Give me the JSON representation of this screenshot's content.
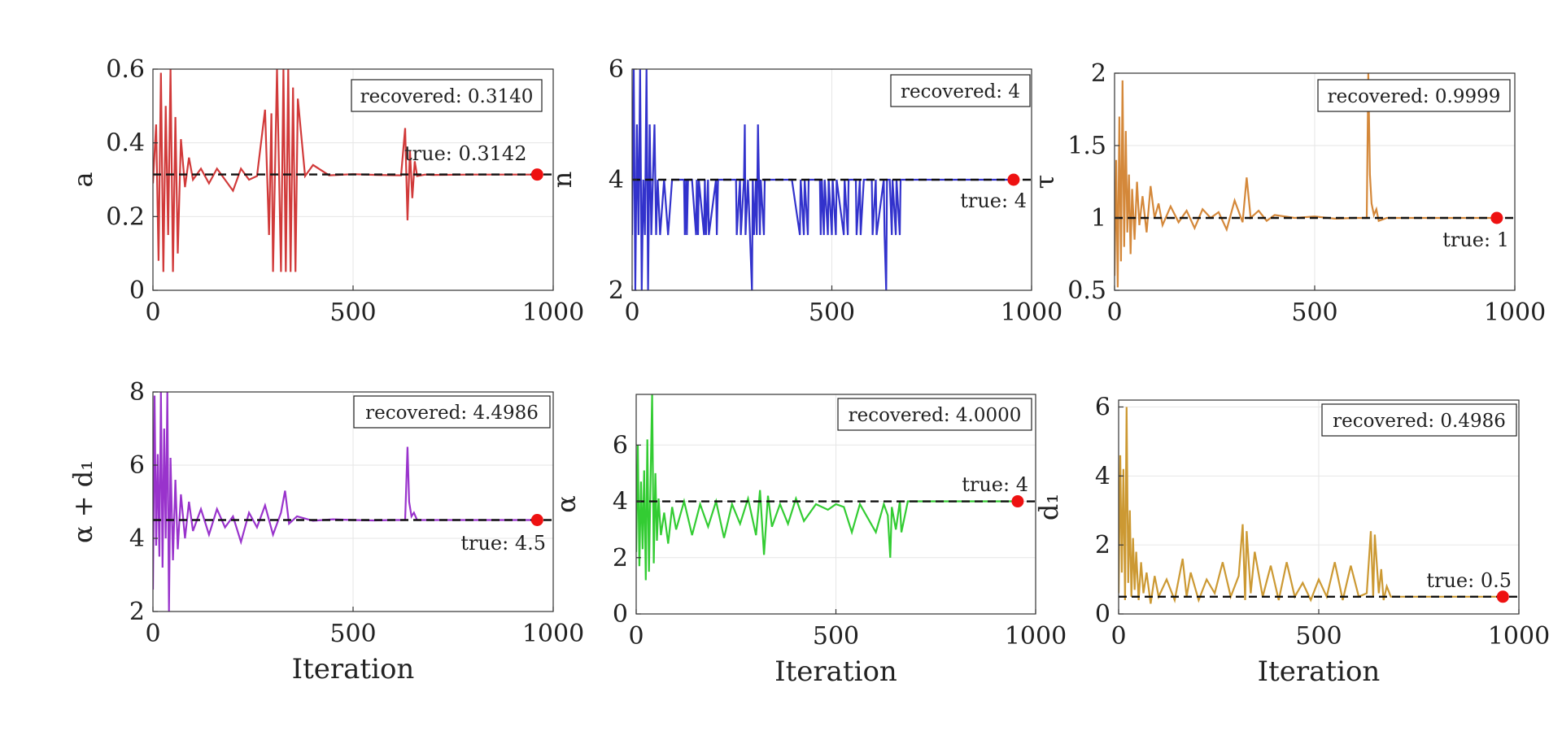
{
  "chart_data": [
    {
      "type": "line",
      "name": "a",
      "ylabel": "a",
      "xlabel": "",
      "xlim": [
        0,
        1000
      ],
      "ylim": [
        0,
        0.6
      ],
      "xticks": [
        0,
        500,
        1000
      ],
      "yticks": [
        0,
        0.2,
        0.4,
        0.6
      ],
      "ytick_labels": [
        "0",
        "0.2",
        "0.4",
        "0.6"
      ],
      "color": "#d13a3a",
      "true_value": 0.3142,
      "final_iteration": 960,
      "recovered_label": "recovered: 0.3140",
      "true_label": "true: 0.3142",
      "series": {
        "name": "a trace",
        "x": [
          0,
          8,
          14,
          20,
          26,
          32,
          38,
          44,
          50,
          56,
          62,
          70,
          80,
          90,
          100,
          120,
          140,
          160,
          180,
          200,
          220,
          240,
          260,
          280,
          290,
          296,
          300,
          310,
          320,
          326,
          332,
          338,
          344,
          350,
          356,
          362,
          380,
          400,
          440,
          500,
          560,
          620,
          630,
          636,
          642,
          648,
          654,
          660,
          680,
          700,
          800,
          900,
          960
        ],
        "values": [
          0.29,
          0.45,
          0.08,
          0.59,
          0.05,
          0.5,
          0.15,
          0.6,
          0.05,
          0.47,
          0.1,
          0.41,
          0.28,
          0.36,
          0.3,
          0.33,
          0.29,
          0.33,
          0.3,
          0.27,
          0.33,
          0.3,
          0.31,
          0.49,
          0.15,
          0.48,
          0.05,
          0.6,
          0.05,
          0.6,
          0.05,
          0.6,
          0.05,
          0.55,
          0.05,
          0.52,
          0.31,
          0.34,
          0.312,
          0.315,
          0.313,
          0.312,
          0.44,
          0.19,
          0.38,
          0.25,
          0.35,
          0.31,
          0.314,
          0.313,
          0.314,
          0.314,
          0.314
        ]
      }
    },
    {
      "type": "line",
      "name": "n",
      "ylabel": "n",
      "xlabel": "",
      "xlim": [
        0,
        1000
      ],
      "ylim": [
        2,
        6
      ],
      "xticks": [
        0,
        500,
        1000
      ],
      "yticks": [
        2,
        4,
        6
      ],
      "ytick_labels": [
        "2",
        "4",
        "6"
      ],
      "color": "#3232cc",
      "true_value": 4,
      "final_iteration": 955,
      "recovered_label": "recovered: 4",
      "true_label": "true: 4",
      "series": {
        "name": "n trace",
        "x": [
          0,
          4,
          8,
          12,
          16,
          20,
          24,
          28,
          32,
          36,
          40,
          44,
          48,
          52,
          56,
          60,
          64,
          70,
          80,
          90,
          100,
          130,
          132,
          135,
          137,
          140,
          150,
          160,
          162,
          165,
          167,
          180,
          182,
          185,
          190,
          192,
          210,
          212,
          215,
          220,
          260,
          262,
          270,
          272,
          280,
          282,
          284,
          290,
          300,
          302,
          305,
          310,
          312,
          315,
          320,
          322,
          330,
          332,
          340,
          400,
          420,
          422,
          430,
          432,
          440,
          442,
          470,
          472,
          475,
          480,
          482,
          490,
          492,
          500,
          502,
          510,
          512,
          530,
          532,
          540,
          542,
          560,
          562,
          570,
          572,
          580,
          582,
          600,
          602,
          610,
          612,
          630,
          632,
          636,
          638,
          645,
          650,
          652,
          660,
          662,
          670,
          672,
          700,
          800,
          955
        ],
        "values": [
          3,
          6,
          2,
          5,
          3,
          6,
          2,
          4,
          3,
          6,
          2,
          5,
          3,
          4,
          5,
          3,
          4,
          3,
          4,
          3,
          4,
          4,
          3,
          4,
          3,
          4,
          4,
          3,
          4,
          3,
          4,
          3,
          4,
          3,
          4,
          3,
          4,
          3,
          4,
          4,
          4,
          3,
          4,
          3,
          4,
          5,
          3,
          4,
          2,
          4,
          3,
          4,
          3,
          5,
          3,
          4,
          3,
          4,
          4,
          4,
          3,
          4,
          3,
          4,
          3,
          4,
          4,
          3,
          4,
          3,
          4,
          3,
          4,
          3,
          4,
          3,
          4,
          3,
          4,
          3,
          4,
          4,
          3,
          4,
          3,
          4,
          4,
          4,
          3,
          4,
          3,
          4,
          3,
          2,
          4,
          4,
          3,
          4,
          3,
          4,
          3,
          4,
          4,
          4,
          4
        ]
      }
    },
    {
      "type": "line",
      "name": "tau",
      "ylabel": "τ",
      "xlabel": "",
      "xlim": [
        0,
        1000
      ],
      "ylim": [
        0.5,
        2
      ],
      "xticks": [
        0,
        500,
        1000
      ],
      "yticks": [
        0.5,
        1,
        1.5,
        2
      ],
      "ytick_labels": [
        "0.5",
        "1",
        "1.5",
        "2"
      ],
      "color": "#d4883a",
      "true_value": 1,
      "final_iteration": 955,
      "recovered_label": "recovered: 0.9999",
      "true_label": "true: 1",
      "series": {
        "name": "tau trace",
        "x": [
          0,
          4,
          8,
          12,
          16,
          20,
          24,
          28,
          32,
          36,
          40,
          44,
          50,
          56,
          62,
          70,
          80,
          90,
          100,
          110,
          120,
          140,
          160,
          180,
          200,
          220,
          240,
          260,
          280,
          300,
          320,
          330,
          340,
          360,
          380,
          400,
          450,
          500,
          550,
          600,
          630,
          634,
          638,
          642,
          648,
          654,
          660,
          680,
          700,
          800,
          955
        ],
        "values": [
          0.6,
          1.4,
          0.52,
          1.7,
          0.7,
          1.95,
          0.8,
          1.6,
          0.9,
          1.3,
          0.75,
          1.2,
          0.85,
          1.25,
          0.95,
          1.15,
          0.9,
          1.22,
          1.0,
          1.1,
          0.95,
          1.08,
          0.97,
          1.05,
          0.93,
          1.06,
          1.0,
          1.04,
          0.92,
          1.12,
          0.97,
          1.28,
          1.0,
          1.05,
          0.98,
          1.02,
          1.0,
          1.01,
          0.995,
          1.0,
          1.0,
          2.0,
          1.3,
          1.1,
          1.02,
          1.06,
          0.98,
          1.0,
          1.0,
          1.0,
          1.0
        ]
      }
    },
    {
      "type": "line",
      "name": "alpha + d1",
      "ylabel": "α + d₁",
      "xlabel": "Iteration",
      "xlim": [
        0,
        1000
      ],
      "ylim": [
        2,
        8
      ],
      "xticks": [
        0,
        500,
        1000
      ],
      "yticks": [
        2,
        4,
        6,
        8
      ],
      "ytick_labels": [
        "2",
        "4",
        "6",
        "8"
      ],
      "color": "#9933cc",
      "true_value": 4.5,
      "final_iteration": 960,
      "recovered_label": "recovered: 4.4986",
      "true_label": "true: 4.5",
      "series": {
        "name": "alpha + d1 trace",
        "x": [
          0,
          4,
          8,
          12,
          16,
          20,
          24,
          28,
          32,
          36,
          40,
          44,
          50,
          56,
          62,
          70,
          80,
          90,
          100,
          120,
          140,
          160,
          180,
          200,
          220,
          240,
          260,
          280,
          300,
          320,
          330,
          340,
          360,
          400,
          450,
          500,
          550,
          600,
          630,
          636,
          640,
          646,
          652,
          660,
          680,
          700,
          800,
          960
        ],
        "values": [
          2.6,
          7.9,
          3.8,
          6.3,
          3.5,
          8.0,
          3.2,
          7.0,
          4.0,
          8.0,
          2.0,
          6.2,
          3.4,
          5.6,
          3.7,
          5.2,
          4.0,
          5.0,
          4.2,
          4.8,
          4.1,
          4.8,
          4.3,
          4.6,
          3.9,
          4.7,
          4.3,
          4.9,
          4.1,
          4.7,
          5.3,
          4.4,
          4.6,
          4.48,
          4.52,
          4.5,
          4.49,
          4.5,
          4.5,
          6.5,
          5.0,
          4.6,
          4.7,
          4.5,
          4.5,
          4.5,
          4.5,
          4.5
        ]
      }
    },
    {
      "type": "line",
      "name": "alpha",
      "ylabel": "α",
      "xlabel": "Iteration",
      "xlim": [
        0,
        1000
      ],
      "ylim": [
        0,
        7.8
      ],
      "xticks": [
        0,
        500,
        1000
      ],
      "yticks": [
        0,
        2,
        4,
        6
      ],
      "ytick_labels": [
        "0",
        "2",
        "4",
        "6"
      ],
      "color": "#33cc33",
      "true_value": 4,
      "final_iteration": 955,
      "recovered_label": "recovered: 4.0000",
      "true_label": "true: 4",
      "series": {
        "name": "alpha trace",
        "x": [
          0,
          4,
          8,
          12,
          16,
          20,
          24,
          28,
          32,
          36,
          40,
          44,
          48,
          52,
          56,
          62,
          70,
          80,
          90,
          100,
          120,
          140,
          160,
          180,
          200,
          220,
          240,
          260,
          280,
          300,
          310,
          320,
          330,
          340,
          360,
          380,
          400,
          420,
          450,
          480,
          500,
          520,
          540,
          560,
          600,
          620,
          630,
          636,
          640,
          650,
          660,
          664,
          680,
          700,
          800,
          955
        ],
        "values": [
          2.2,
          6.0,
          1.7,
          4.7,
          2.3,
          5.1,
          1.2,
          6.2,
          1.5,
          4.8,
          7.8,
          1.8,
          5.0,
          2.6,
          4.1,
          2.8,
          3.6,
          2.5,
          3.8,
          3.0,
          4.0,
          2.8,
          3.9,
          3.1,
          4.0,
          2.7,
          3.9,
          3.2,
          4.1,
          2.8,
          4.4,
          2.1,
          4.2,
          3.1,
          3.9,
          3.2,
          4.1,
          3.3,
          3.9,
          3.7,
          3.9,
          3.8,
          2.9,
          3.9,
          2.9,
          3.9,
          3.5,
          2.0,
          3.8,
          3.0,
          4.0,
          2.9,
          4.0,
          4.0,
          4.0,
          4.0
        ]
      }
    },
    {
      "type": "line",
      "name": "d1",
      "ylabel": "d₁",
      "xlabel": "Iteration",
      "xlim": [
        0,
        1000
      ],
      "ylim": [
        0,
        6.2
      ],
      "xticks": [
        0,
        500,
        1000
      ],
      "yticks": [
        0,
        2,
        4,
        6
      ],
      "ytick_labels": [
        "0",
        "2",
        "4",
        "6"
      ],
      "color": "#cc9933",
      "true_value": 0.5,
      "final_iteration": 960,
      "recovered_label": "recovered: 0.4986",
      "true_label": "true: 0.5",
      "series": {
        "name": "d1 trace",
        "x": [
          0,
          4,
          8,
          12,
          16,
          20,
          24,
          28,
          32,
          36,
          40,
          44,
          50,
          56,
          62,
          70,
          80,
          90,
          100,
          120,
          140,
          160,
          170,
          180,
          200,
          220,
          240,
          260,
          280,
          300,
          310,
          316,
          320,
          330,
          340,
          360,
          380,
          400,
          420,
          440,
          460,
          480,
          500,
          520,
          540,
          560,
          580,
          600,
          620,
          630,
          636,
          640,
          650,
          656,
          662,
          670,
          680,
          700,
          800,
          960
        ],
        "values": [
          0.6,
          4.6,
          1.2,
          4.2,
          0.4,
          6.0,
          0.9,
          3.0,
          0.5,
          2.2,
          0.7,
          1.8,
          0.4,
          1.5,
          0.6,
          1.2,
          0.3,
          1.1,
          0.5,
          1.0,
          0.4,
          1.6,
          0.5,
          1.2,
          0.4,
          1.0,
          0.6,
          1.5,
          0.5,
          1.1,
          2.6,
          0.4,
          2.4,
          0.6,
          1.8,
          0.5,
          1.4,
          0.4,
          1.5,
          0.5,
          0.9,
          0.4,
          1.0,
          0.5,
          1.5,
          0.4,
          1.4,
          0.5,
          0.6,
          2.4,
          0.5,
          2.3,
          0.6,
          1.3,
          0.4,
          0.8,
          0.5,
          0.5,
          0.5,
          0.5
        ]
      }
    }
  ]
}
